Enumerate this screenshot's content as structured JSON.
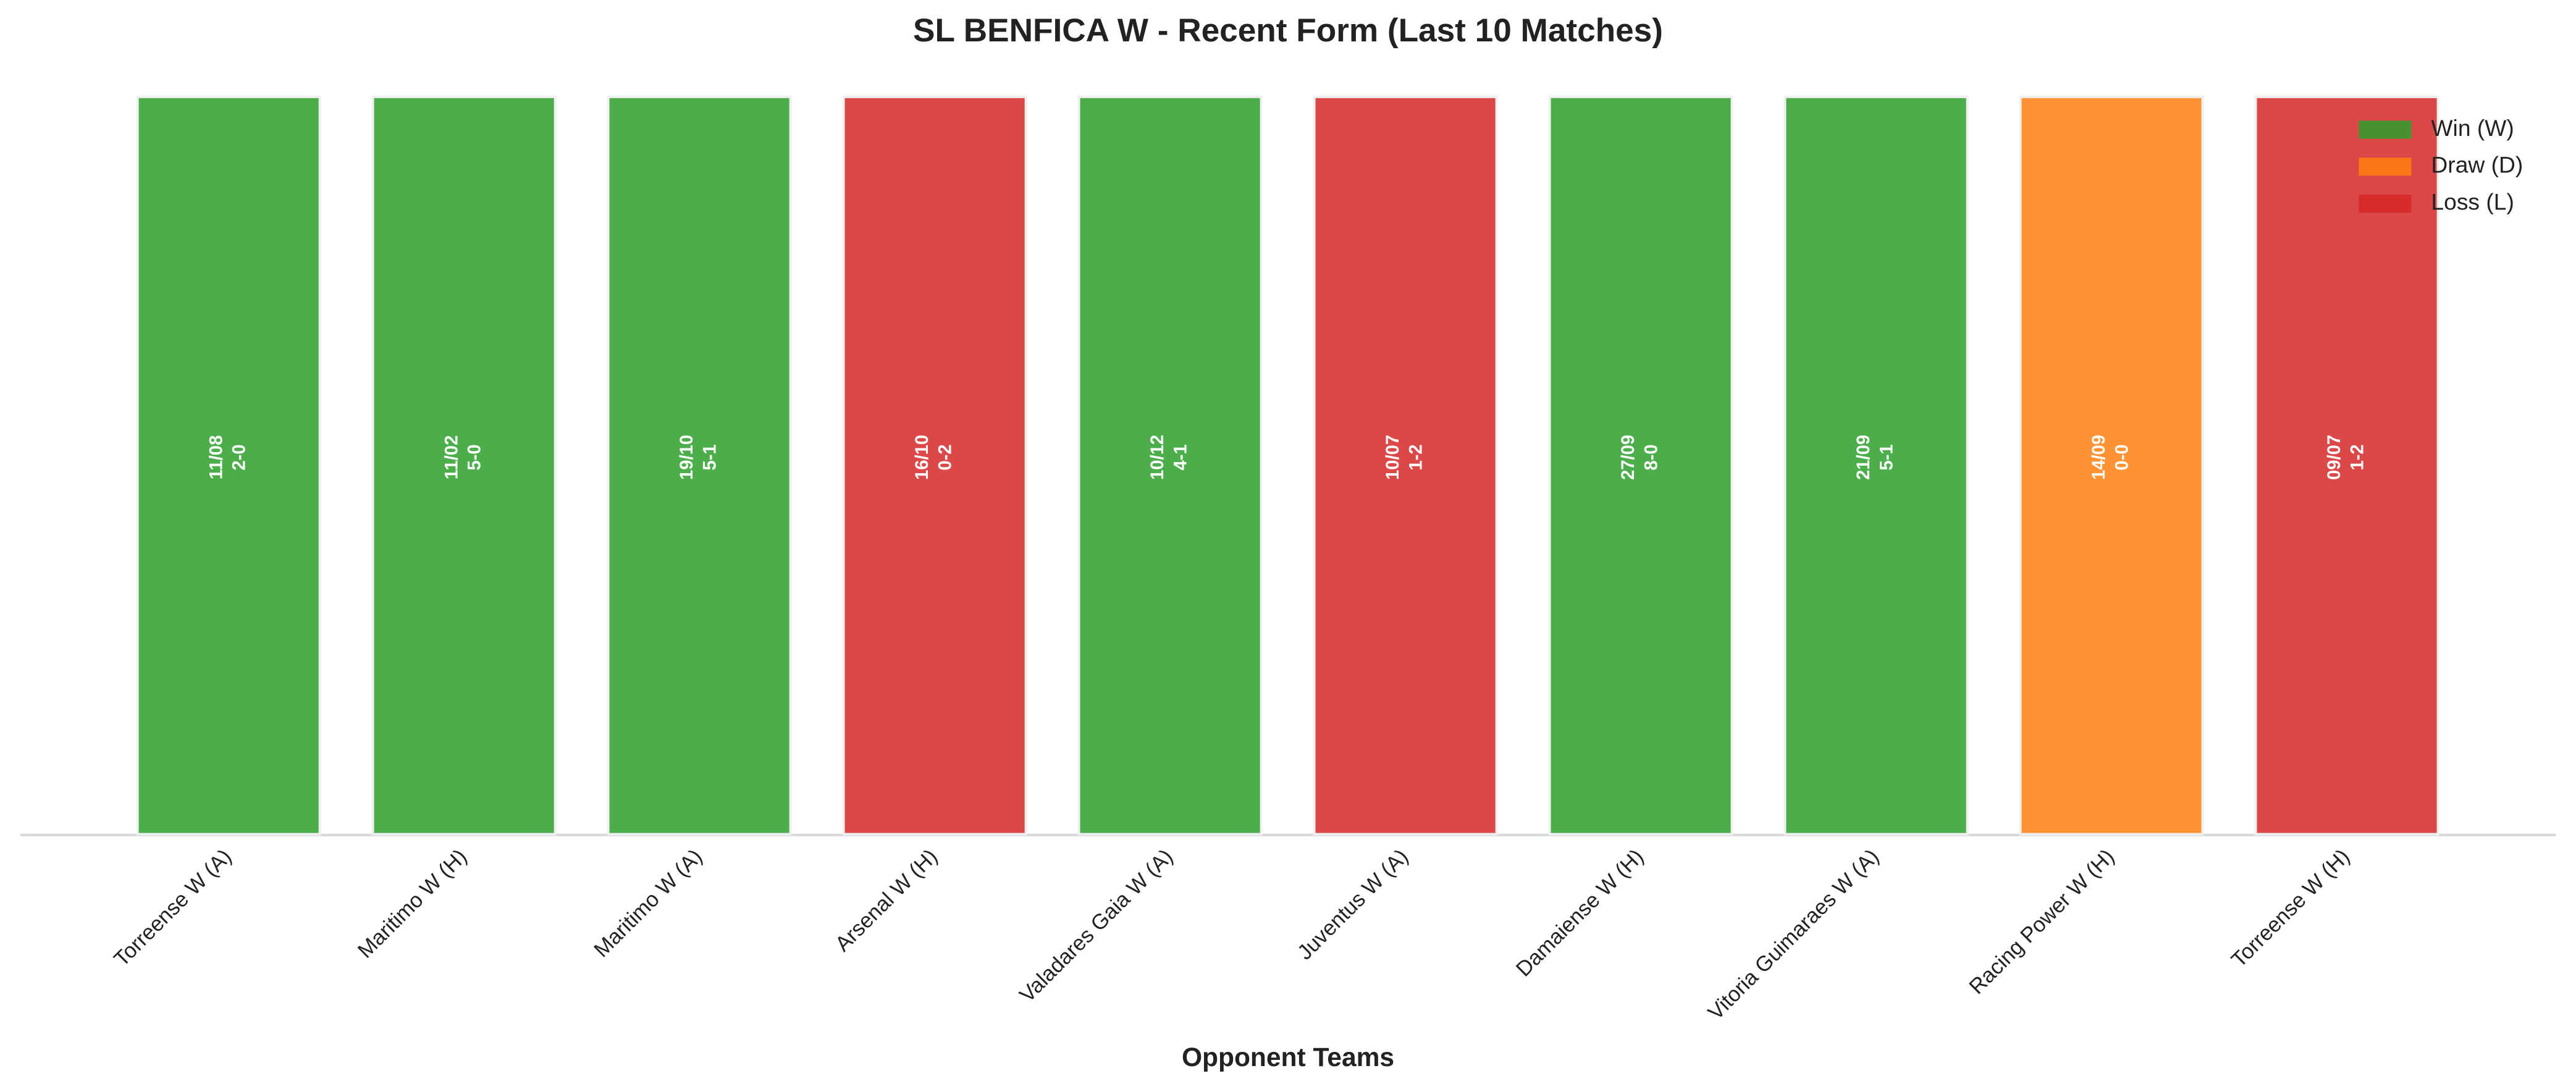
{
  "chart_data": {
    "type": "bar",
    "title": "SL BENFICA W - Recent Form (Last 10 Matches)",
    "x_label": "Opponent Teams",
    "categories": [
      "Torreense W (A)",
      "Maritimo W (H)",
      "Maritimo W (A)",
      "Arsenal W (H)",
      "Valadares Gaia W (A)",
      "Juventus W (A)",
      "Damaiense W (H)",
      "Vitoria Guimaraes W (A)",
      "Racing Power W (H)",
      "Torreense W (H)"
    ],
    "values": [
      1,
      1,
      1,
      1,
      1,
      1,
      1,
      1,
      1,
      1
    ],
    "colors": [
      "#2ca02c",
      "#2ca02c",
      "#2ca02c",
      "#d62728",
      "#2ca02c",
      "#d62728",
      "#2ca02c",
      "#2ca02c",
      "#ff7f0e",
      "#d62728"
    ],
    "dates": [
      "11/08",
      "11/02",
      "19/10",
      "16/10",
      "10/12",
      "10/07",
      "27/09",
      "21/09",
      "14/09",
      "09/07"
    ],
    "scores": [
      "2-0",
      "5-0",
      "5-1",
      "0-2",
      "4-1",
      "1-2",
      "8-0",
      "5-1",
      "0-0",
      "1-2"
    ],
    "ylim": [
      0,
      1
    ],
    "legend": [
      {
        "name": "Win (W)",
        "color": "#2ca02c"
      },
      {
        "name": "Draw (D)",
        "color": "#ff7f0e"
      },
      {
        "name": "Loss (L)",
        "color": "#d62728"
      }
    ],
    "legend_position": "upper right"
  }
}
